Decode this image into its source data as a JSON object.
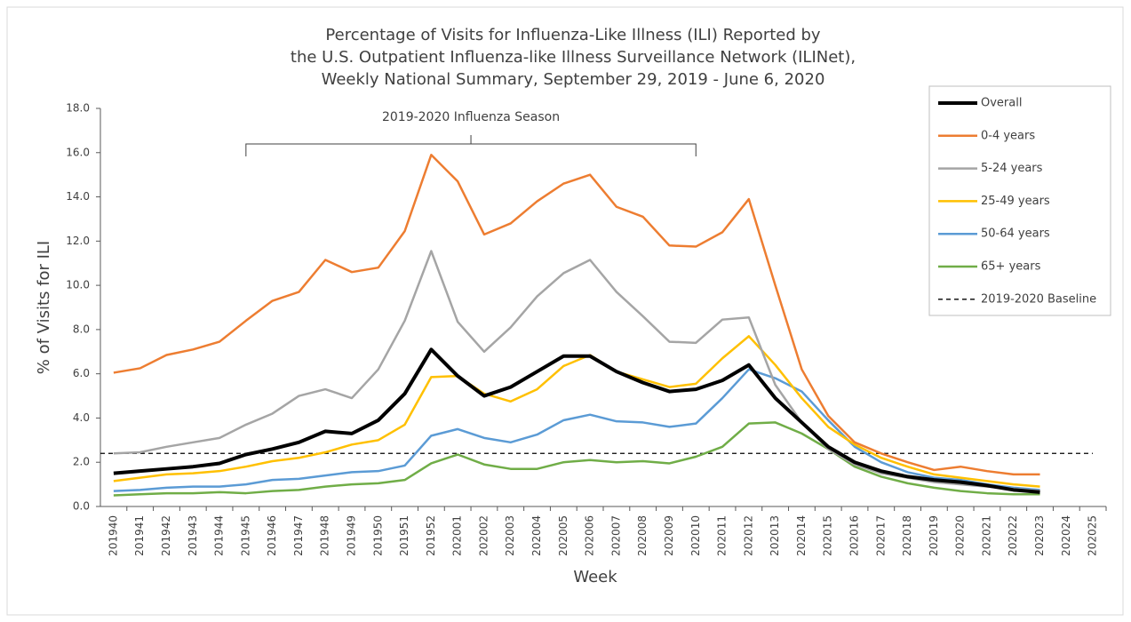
{
  "chart_data": {
    "type": "line",
    "title": [
      "Percentage of Visits for Influenza-Like Illness (ILI) Reported by",
      "the U.S. Outpatient Influenza-like Illness Surveillance Network (ILINet),",
      "Weekly National Summary, September 29, 2019 - June 6, 2020"
    ],
    "xlabel": "Week",
    "ylabel": "% of Visits for ILI",
    "categories": [
      "201940",
      "201941",
      "201942",
      "201943",
      "201944",
      "201945",
      "201946",
      "201947",
      "201948",
      "201949",
      "201950",
      "201951",
      "201952",
      "202001",
      "202002",
      "202003",
      "202004",
      "202005",
      "202006",
      "202007",
      "202008",
      "202009",
      "202010",
      "202011",
      "202012",
      "202013",
      "202014",
      "202015",
      "202016",
      "202017",
      "202018",
      "202019",
      "202020",
      "202021",
      "202022",
      "202023",
      "202024",
      "202025"
    ],
    "ylim": [
      0,
      18
    ],
    "yticks": [
      {
        "value": 0,
        "label": "0.0"
      },
      {
        "value": 2,
        "label": "2.0"
      },
      {
        "value": 4,
        "label": "4.0"
      },
      {
        "value": 6,
        "label": "6.0"
      },
      {
        "value": 8,
        "label": "8.0"
      },
      {
        "value": 10,
        "label": "10.0"
      },
      {
        "value": 12,
        "label": "12.0"
      },
      {
        "value": 14,
        "label": "14.0"
      },
      {
        "value": 16,
        "label": "16.0"
      },
      {
        "value": 18,
        "label": "18.0"
      }
    ],
    "grid": false,
    "legend": "right",
    "annotation": {
      "text": "2019-2020 Influenza Season",
      "from": "201945",
      "to": "202010"
    },
    "series": [
      {
        "name": "Overall",
        "color": "#000000",
        "width": 4,
        "values": [
          1.5,
          1.6,
          1.7,
          1.8,
          1.95,
          2.35,
          2.6,
          2.9,
          3.4,
          3.3,
          3.9,
          5.1,
          7.1,
          5.9,
          5.0,
          5.4,
          6.1,
          6.8,
          6.8,
          6.1,
          5.6,
          5.2,
          5.3,
          5.7,
          6.4,
          4.9,
          3.8,
          2.7,
          2.0,
          1.6,
          1.35,
          1.2,
          1.1,
          0.95,
          0.75,
          0.65,
          null,
          null
        ]
      },
      {
        "name": "0-4 years",
        "color": "#ed7d31",
        "width": 2.5,
        "values": [
          6.05,
          6.25,
          6.85,
          7.1,
          7.45,
          8.4,
          9.3,
          9.7,
          11.15,
          10.6,
          10.8,
          12.45,
          15.9,
          14.7,
          12.3,
          12.8,
          13.8,
          14.6,
          15.0,
          13.55,
          13.1,
          11.8,
          11.75,
          12.4,
          13.9,
          10.0,
          6.2,
          4.1,
          2.9,
          2.4,
          2.0,
          1.65,
          1.8,
          1.6,
          1.45,
          1.45,
          null,
          null
        ]
      },
      {
        "name": "5-24 years",
        "color": "#a5a5a5",
        "width": 2.5,
        "values": [
          2.4,
          2.45,
          2.7,
          2.9,
          3.1,
          3.7,
          4.2,
          5.0,
          5.3,
          4.9,
          6.2,
          8.4,
          11.55,
          8.35,
          7.0,
          8.1,
          9.5,
          10.55,
          11.15,
          9.7,
          8.6,
          7.45,
          7.4,
          8.45,
          8.55,
          5.5,
          3.8,
          2.6,
          1.9,
          1.5,
          1.3,
          1.1,
          1.0,
          0.9,
          0.8,
          0.7,
          null,
          null
        ]
      },
      {
        "name": "25-49 years",
        "color": "#ffc000",
        "width": 2.5,
        "values": [
          1.15,
          1.3,
          1.45,
          1.5,
          1.6,
          1.8,
          2.05,
          2.2,
          2.45,
          2.8,
          3.0,
          3.7,
          5.85,
          5.9,
          5.1,
          4.75,
          5.3,
          6.35,
          6.85,
          6.1,
          5.75,
          5.4,
          5.55,
          6.7,
          7.7,
          6.4,
          4.9,
          3.6,
          2.8,
          2.2,
          1.8,
          1.45,
          1.3,
          1.15,
          1.0,
          0.9,
          null,
          null
        ]
      },
      {
        "name": "50-64 years",
        "color": "#5b9bd5",
        "width": 2.5,
        "values": [
          0.7,
          0.75,
          0.85,
          0.9,
          0.9,
          1.0,
          1.2,
          1.25,
          1.4,
          1.55,
          1.6,
          1.85,
          3.2,
          3.5,
          3.1,
          2.9,
          3.25,
          3.9,
          4.15,
          3.85,
          3.8,
          3.6,
          3.75,
          4.9,
          6.2,
          5.8,
          5.2,
          3.9,
          2.7,
          2.0,
          1.55,
          1.3,
          1.2,
          1.0,
          0.85,
          0.75,
          null,
          null
        ]
      },
      {
        "name": "65+ years",
        "color": "#70ad47",
        "width": 2.5,
        "values": [
          0.5,
          0.55,
          0.6,
          0.6,
          0.65,
          0.6,
          0.7,
          0.75,
          0.9,
          1.0,
          1.05,
          1.2,
          1.95,
          2.35,
          1.9,
          1.7,
          1.7,
          2.0,
          2.1,
          2.0,
          2.05,
          1.95,
          2.25,
          2.7,
          3.75,
          3.8,
          3.3,
          2.6,
          1.8,
          1.35,
          1.05,
          0.85,
          0.7,
          0.6,
          0.55,
          0.55,
          null,
          null
        ]
      }
    ],
    "baseline": {
      "name": "2019-2020 Baseline",
      "color": "#000000",
      "value": 2.4
    }
  }
}
